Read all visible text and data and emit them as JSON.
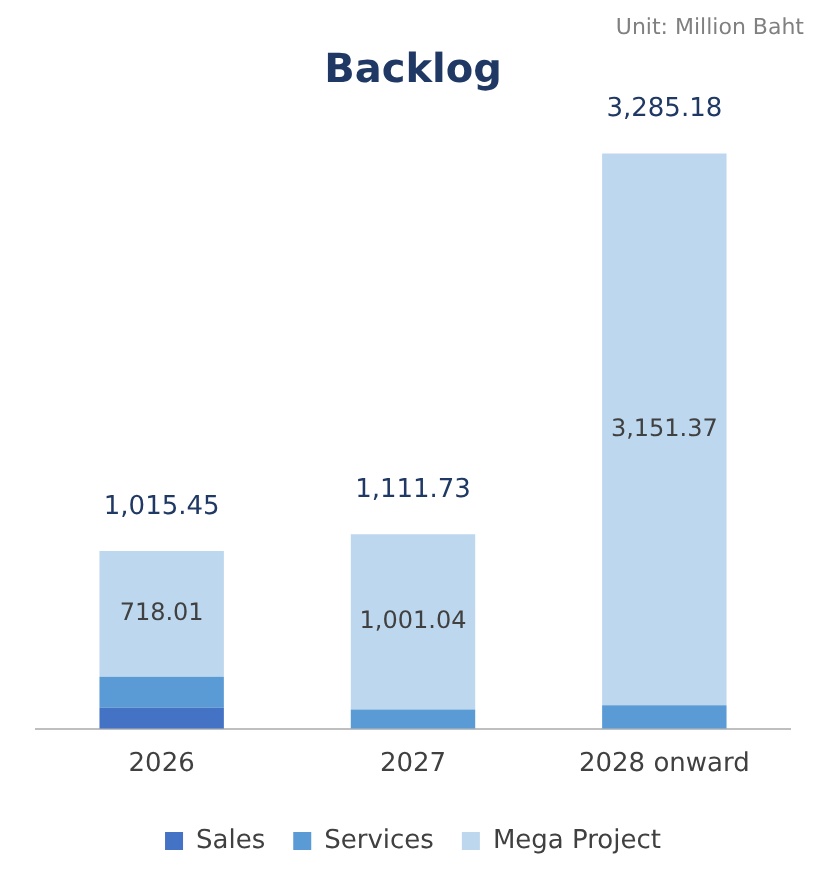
{
  "chart_data": {
    "type": "bar",
    "title": "Backlog",
    "annotations": [
      "Unit: Million Baht"
    ],
    "categories": [
      "2026",
      "2027",
      "2028 onward"
    ],
    "stacked": true,
    "series": [
      {
        "name": "Sales",
        "color": "#4472c4",
        "values": [
          120,
          0,
          0
        ]
      },
      {
        "name": "Services",
        "color": "#5b9bd5",
        "values": [
          177.44,
          110.69,
          133.81
        ]
      },
      {
        "name": "Mega Project",
        "color": "#bdd7ee",
        "values": [
          718.01,
          1001.04,
          3151.37
        ],
        "value_labels": [
          "718.01",
          "1,001.04",
          "3,151.37"
        ]
      }
    ],
    "totals": [
      "1,015.45",
      "1,111.73",
      "3,285.18"
    ],
    "tick_labels": "x",
    "grid": false,
    "legend": "bottom"
  }
}
